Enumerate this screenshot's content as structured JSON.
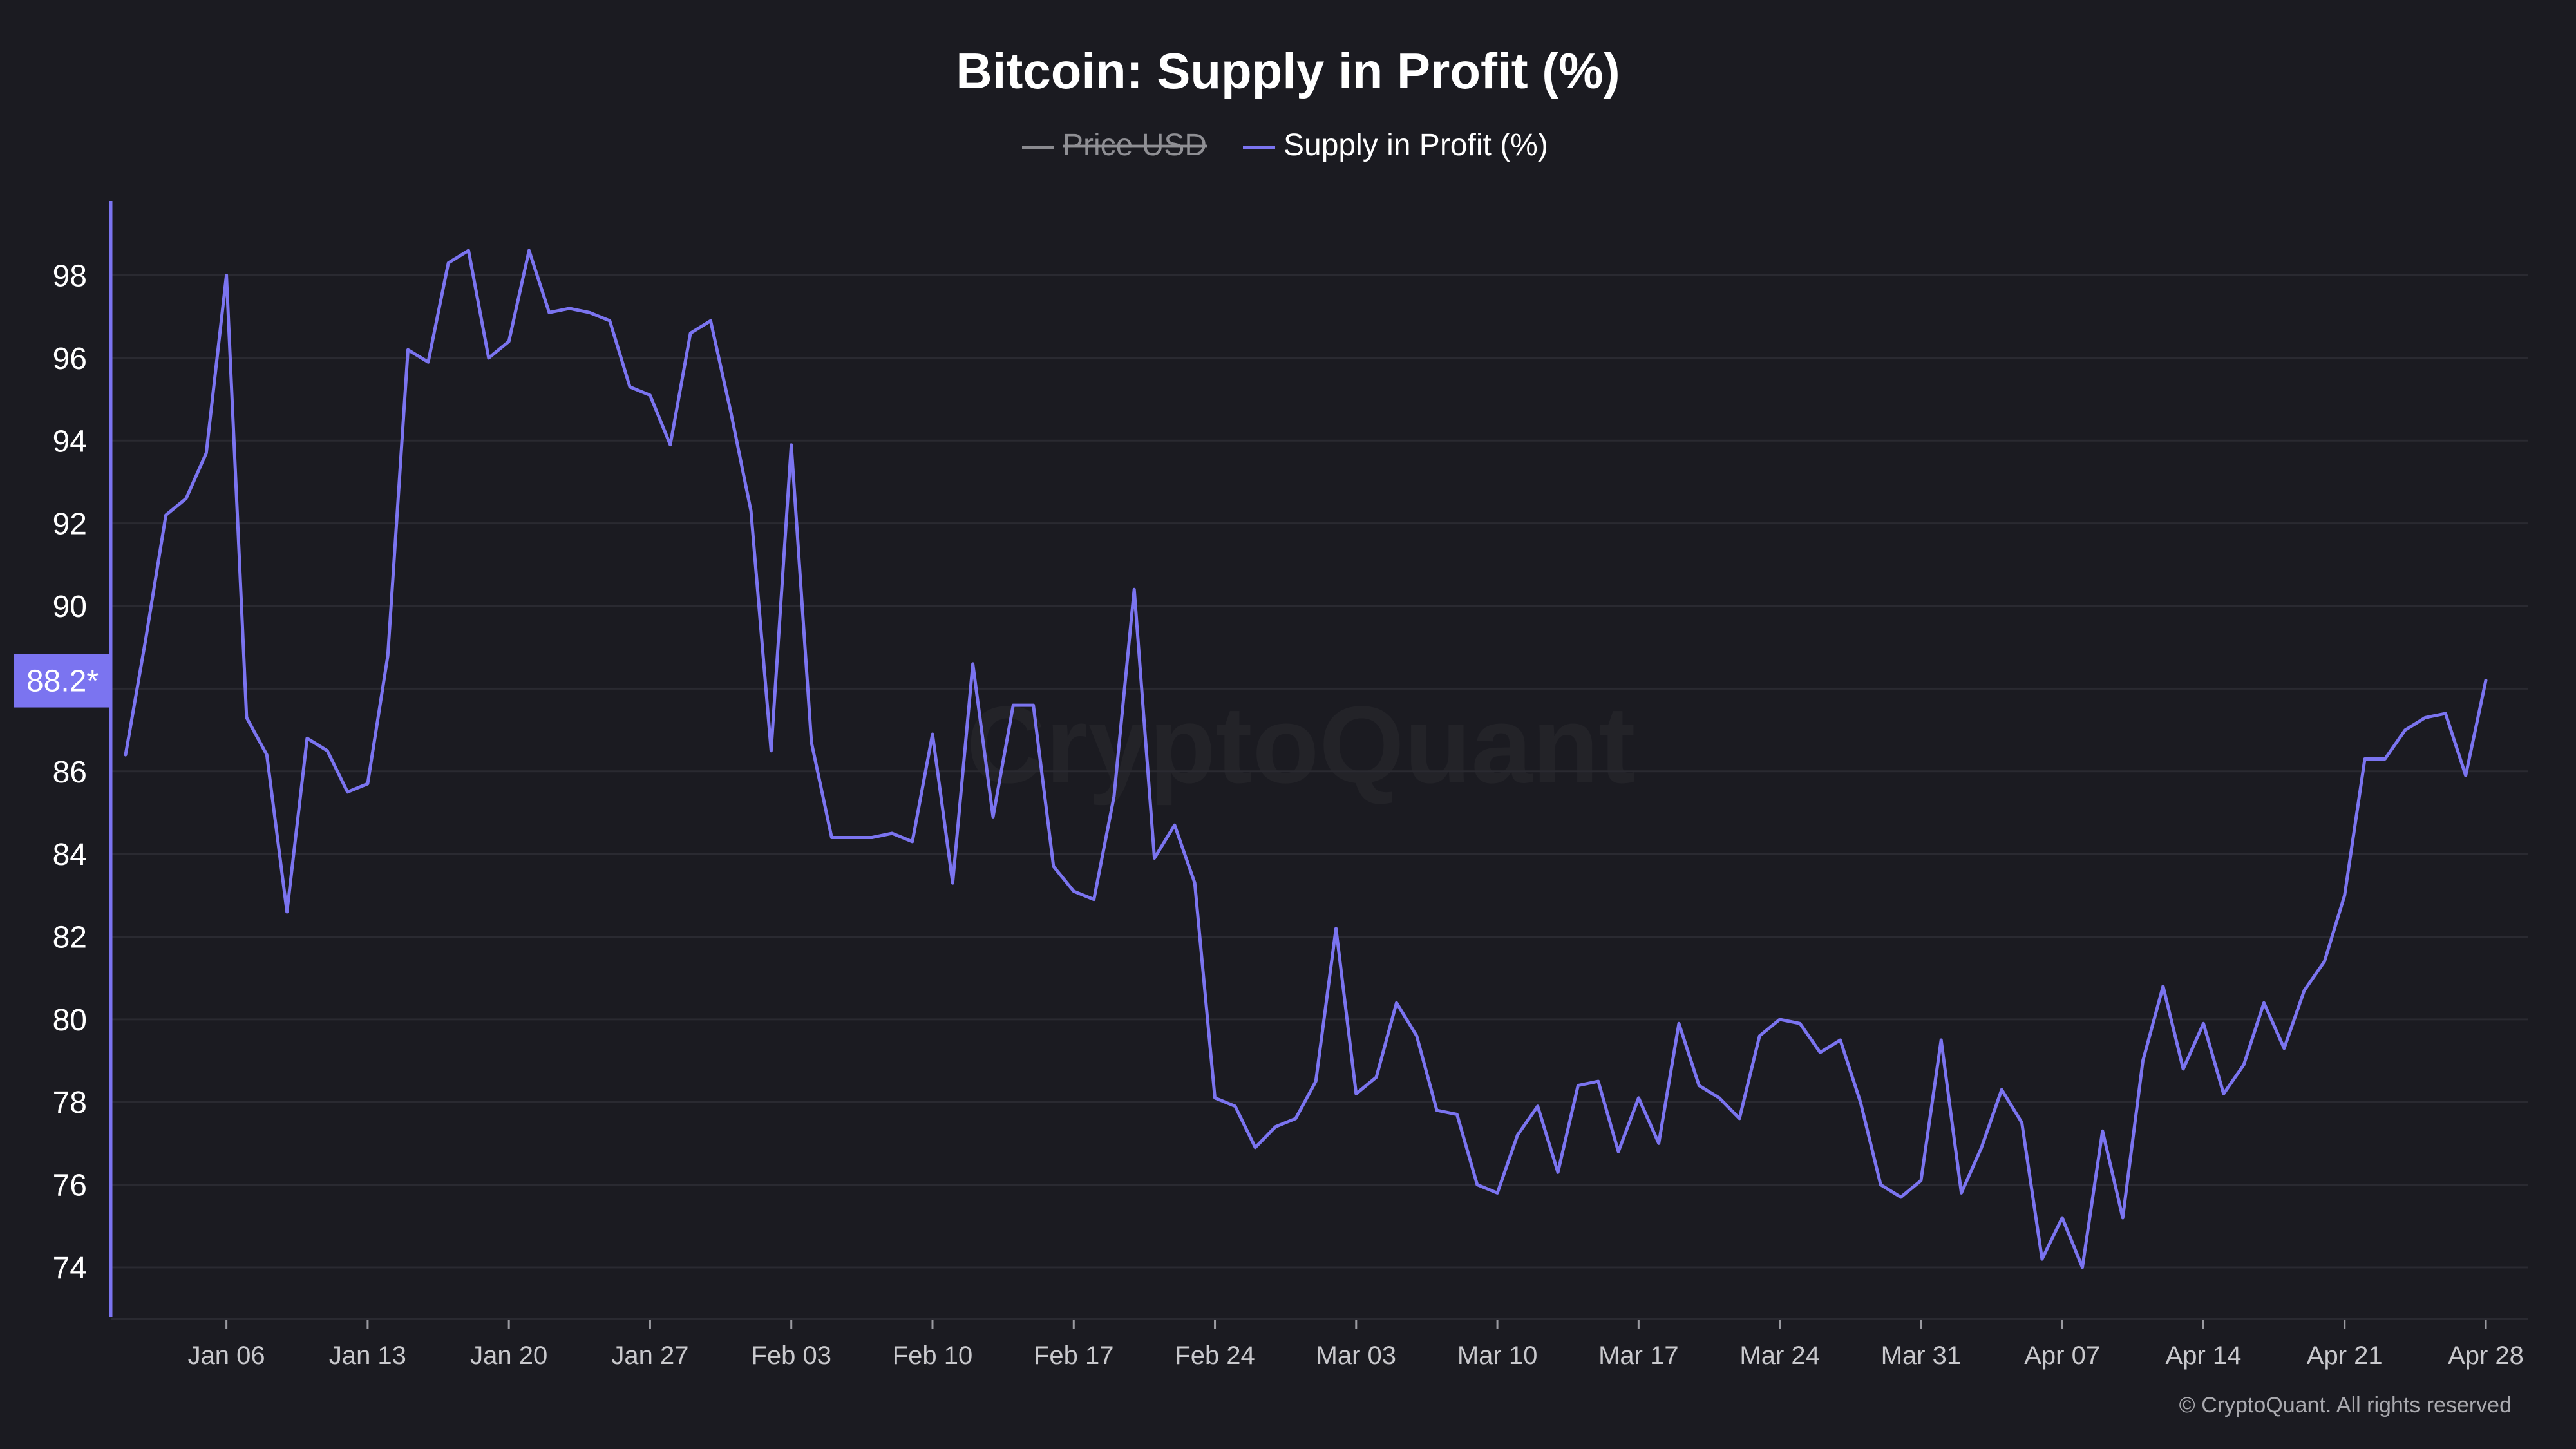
{
  "chart_data": {
    "type": "line",
    "title": "Bitcoin: Supply in Profit (%)",
    "legend": [
      {
        "label": "Price USD",
        "color": "#8a8a8f",
        "hidden": true
      },
      {
        "label": "Supply in Profit (%)",
        "color": "#7b74f0",
        "hidden": false
      }
    ],
    "legend_position": "top-center",
    "watermark": "CryptoQuant",
    "copyright": "© CryptoQuant. All rights reserved",
    "current_value_label": "88.2*",
    "current_value": 88.2,
    "x_tick_labels": [
      "Jan 06",
      "Jan 13",
      "Jan 20",
      "Jan 27",
      "Feb 03",
      "Feb 10",
      "Feb 17",
      "Feb 24",
      "Mar 03",
      "Mar 10",
      "Mar 17",
      "Mar 24",
      "Mar 31",
      "Apr 07",
      "Apr 14",
      "Apr 21",
      "Apr 28"
    ],
    "y_ticks": [
      74,
      76,
      78,
      80,
      82,
      84,
      86,
      88,
      90,
      92,
      94,
      96,
      98
    ],
    "y_tick_labels": [
      "74",
      "76",
      "78",
      "80",
      "82",
      "84",
      "86",
      "",
      "90",
      "92",
      "94",
      "96",
      "98"
    ],
    "ylim": [
      72.8,
      99.8
    ],
    "grid": true,
    "colors": {
      "background": "#1b1b21",
      "line": "#7b74f0",
      "grid": "#2a2a31",
      "text": "#ffffff",
      "tick_text": "#c8c8cc",
      "axis": "#7b74f0",
      "badge": "#7b74f0"
    },
    "x_start": "2025-01-01",
    "x_end": "2025-04-28",
    "series": [
      {
        "name": "Supply in Profit (%)",
        "values": [
          86.4,
          89.2,
          92.2,
          92.6,
          93.7,
          98.0,
          87.3,
          86.4,
          82.6,
          86.8,
          86.5,
          85.5,
          85.7,
          88.8,
          96.2,
          95.9,
          98.3,
          98.6,
          96.0,
          96.4,
          98.6,
          97.1,
          97.2,
          97.1,
          96.9,
          95.3,
          95.1,
          93.9,
          96.6,
          96.9,
          94.7,
          92.3,
          86.5,
          93.9,
          86.7,
          84.4,
          84.4,
          84.4,
          84.5,
          84.3,
          86.9,
          83.3,
          88.6,
          84.9,
          87.6,
          87.6,
          83.7,
          83.1,
          82.9,
          85.4,
          90.4,
          83.9,
          84.7,
          83.3,
          78.1,
          77.9,
          76.9,
          77.4,
          77.6,
          78.5,
          82.2,
          78.2,
          78.6,
          80.4,
          79.6,
          77.8,
          77.7,
          76.0,
          75.8,
          77.2,
          77.9,
          76.3,
          78.4,
          78.5,
          76.8,
          78.1,
          77.0,
          79.9,
          78.4,
          78.1,
          77.6,
          79.6,
          80.0,
          79.9,
          79.2,
          79.5,
          78.0,
          76.0,
          75.7,
          76.1,
          79.5,
          75.8,
          76.9,
          78.3,
          77.5,
          74.2,
          75.2,
          74.0,
          77.3,
          75.2,
          79.0,
          80.8,
          78.8,
          79.9,
          78.2,
          78.9,
          80.4,
          79.3,
          80.7,
          81.4,
          83.0,
          86.3,
          86.3,
          87.0,
          87.3,
          87.4,
          85.9,
          88.2
        ]
      }
    ]
  }
}
